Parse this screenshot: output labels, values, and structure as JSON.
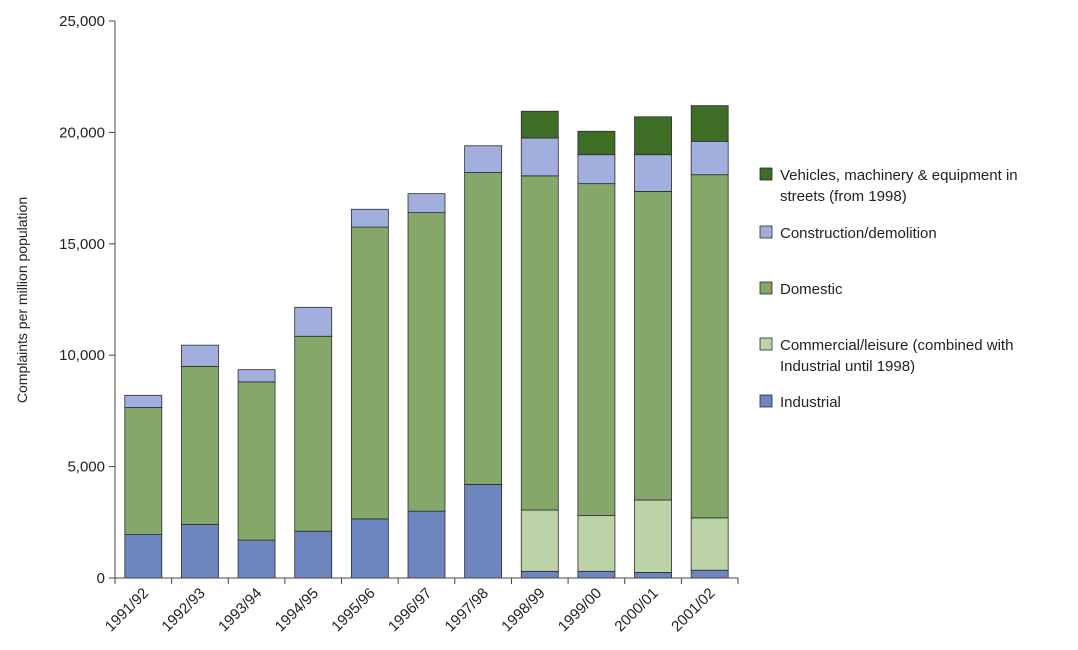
{
  "chart_data": {
    "type": "bar",
    "stacked": true,
    "title": "",
    "xlabel": "",
    "ylabel": "Complaints per million population",
    "ylim": [
      0,
      25000
    ],
    "yticks": [
      0,
      5000,
      10000,
      15000,
      20000,
      25000
    ],
    "ytick_labels": [
      "0",
      "5,000",
      "10,000",
      "15,000",
      "20,000",
      "25,000"
    ],
    "grid": false,
    "legend_position": "right",
    "categories": [
      "1991/92",
      "1992/93",
      "1993/94",
      "1994/95",
      "1995/96",
      "1996/97",
      "1997/98",
      "1998/99",
      "1999/00",
      "2000/01",
      "2001/02"
    ],
    "series": [
      {
        "name": "Industrial",
        "color": "#6e86c0",
        "values": [
          1950,
          2400,
          1700,
          2100,
          2650,
          3000,
          4200,
          300,
          300,
          250,
          350
        ]
      },
      {
        "name": "Commercial/leisure (combined with Industrial until 1998)",
        "color": "#bcd3a8",
        "values": [
          0,
          0,
          0,
          0,
          0,
          0,
          0,
          2750,
          2500,
          3250,
          2350
        ]
      },
      {
        "name": "Domestic",
        "color": "#85a86a",
        "values": [
          5700,
          7100,
          7100,
          8750,
          13100,
          13400,
          14000,
          15000,
          14900,
          13850,
          15400
        ]
      },
      {
        "name": "Construction/demolition",
        "color": "#a2aede",
        "values": [
          550,
          950,
          550,
          1300,
          800,
          850,
          1200,
          1700,
          1300,
          1650,
          1500
        ]
      },
      {
        "name": "Vehicles, machinery & equipment in streets (from 1998)",
        "color": "#3e6e26",
        "values": [
          0,
          0,
          0,
          0,
          0,
          0,
          0,
          1200,
          1050,
          1700,
          1600
        ]
      }
    ],
    "legend_order": [
      [
        "Vehicles, machinery & equipment in",
        "streets (from 1998)"
      ],
      [
        "Construction/demolition"
      ],
      [
        "Domestic"
      ],
      [
        "Commercial/leisure (combined with",
        "Industrial until 1998)"
      ],
      [
        "Industrial"
      ]
    ],
    "legend_series_index": [
      4,
      3,
      2,
      1,
      0
    ]
  }
}
